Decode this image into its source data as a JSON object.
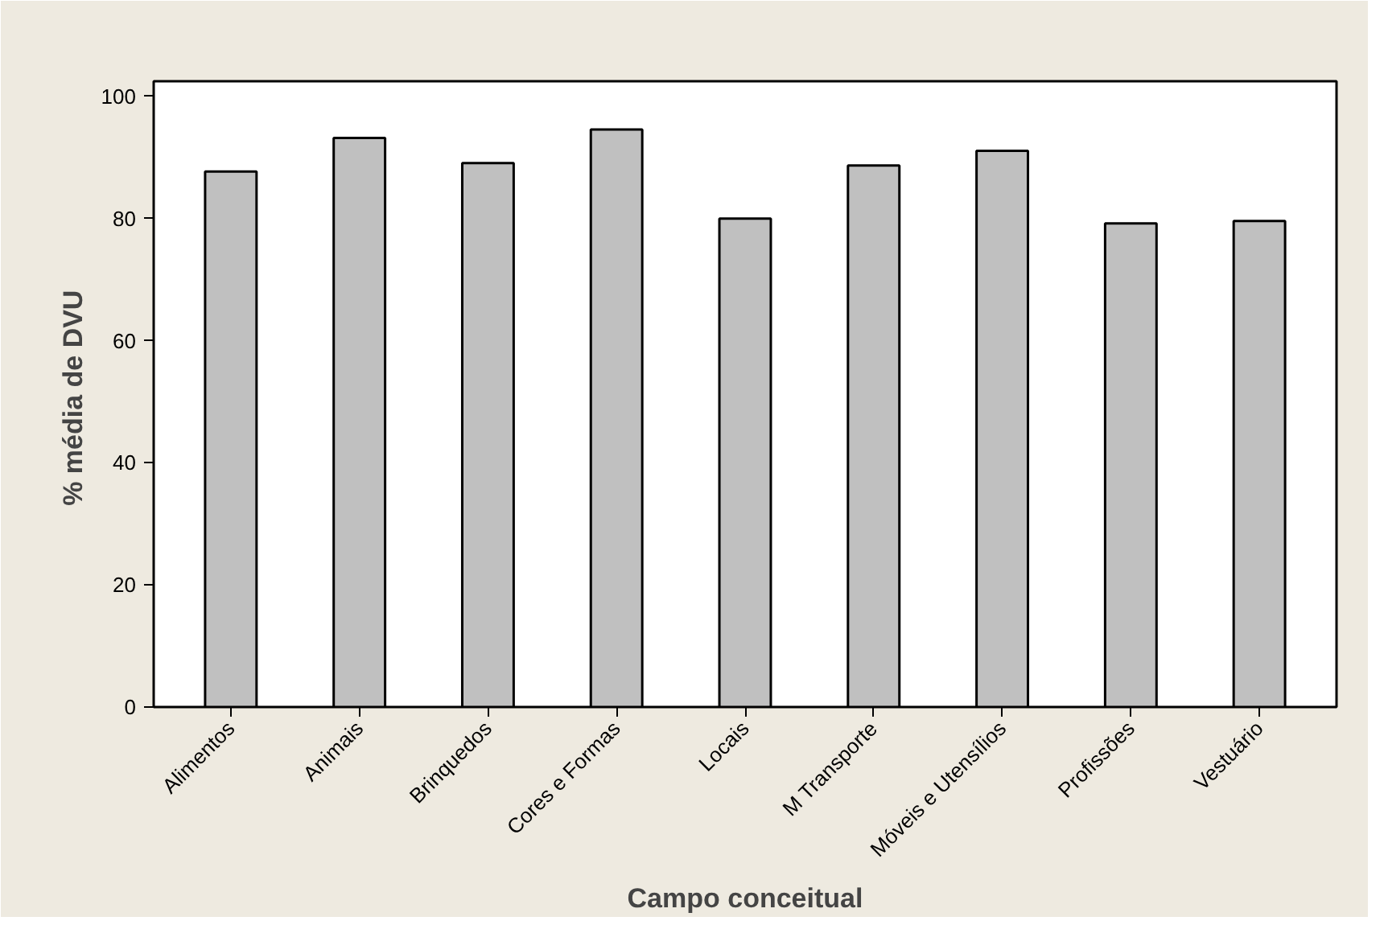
{
  "chart_data": {
    "type": "bar",
    "xlabel": "Campo conceitual",
    "ylabel": "%  média de DVU",
    "categories": [
      "Alimentos",
      "Animais",
      "Brinquedos",
      "Cores e Formas",
      "Locais",
      "M Transporte",
      "Móveis e Utensílios",
      "Profissões",
      "Vestuário"
    ],
    "values": [
      87.7,
      93.2,
      89.1,
      94.6,
      80.0,
      88.7,
      91.1,
      79.2,
      79.6
    ],
    "color": "#c0c0c0",
    "ylim": [
      0,
      102.5
    ],
    "yticks": [
      0,
      20,
      40,
      60,
      80,
      100
    ],
    "grid": false
  }
}
